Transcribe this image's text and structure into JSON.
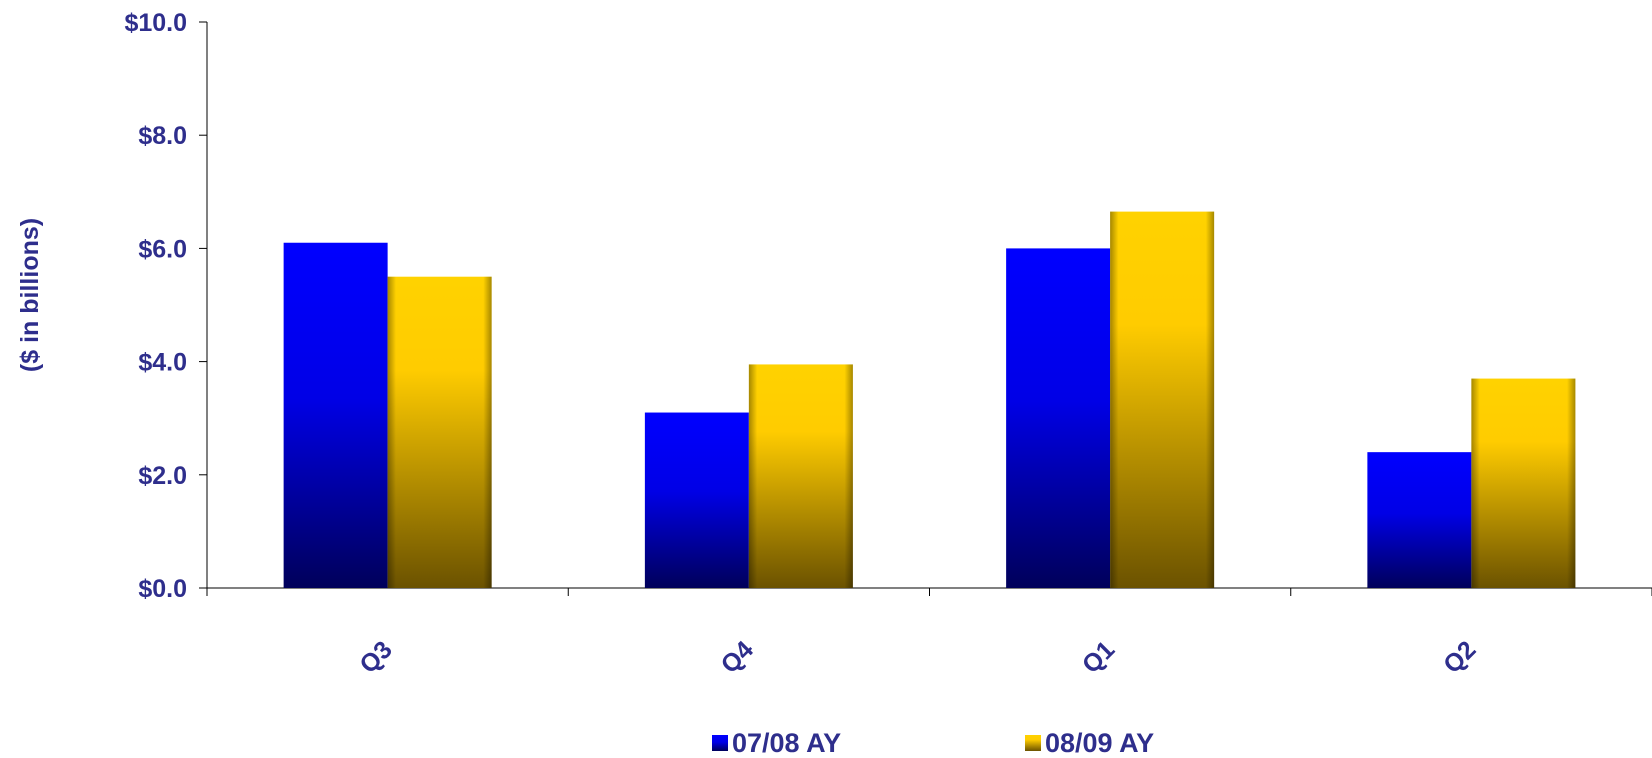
{
  "chart_data": {
    "type": "bar",
    "ylabel": "($ in billions)",
    "xlabel": "",
    "categories": [
      "Q3",
      "Q4",
      "Q1",
      "Q2"
    ],
    "y_tick_labels": [
      "$0.0",
      "$2.0",
      "$4.0",
      "$6.0",
      "$8.0",
      "$10.0"
    ],
    "ylim": [
      0,
      10
    ],
    "grid": false,
    "legend_position": "bottom",
    "series": [
      {
        "name": "07/08 AY",
        "values": [
          6.1,
          3.1,
          6.0,
          2.4
        ],
        "color": "#0000FF"
      },
      {
        "name": "08/09 AY",
        "values": [
          5.5,
          3.95,
          6.65,
          3.7
        ],
        "color": "#FFCC00"
      }
    ]
  }
}
